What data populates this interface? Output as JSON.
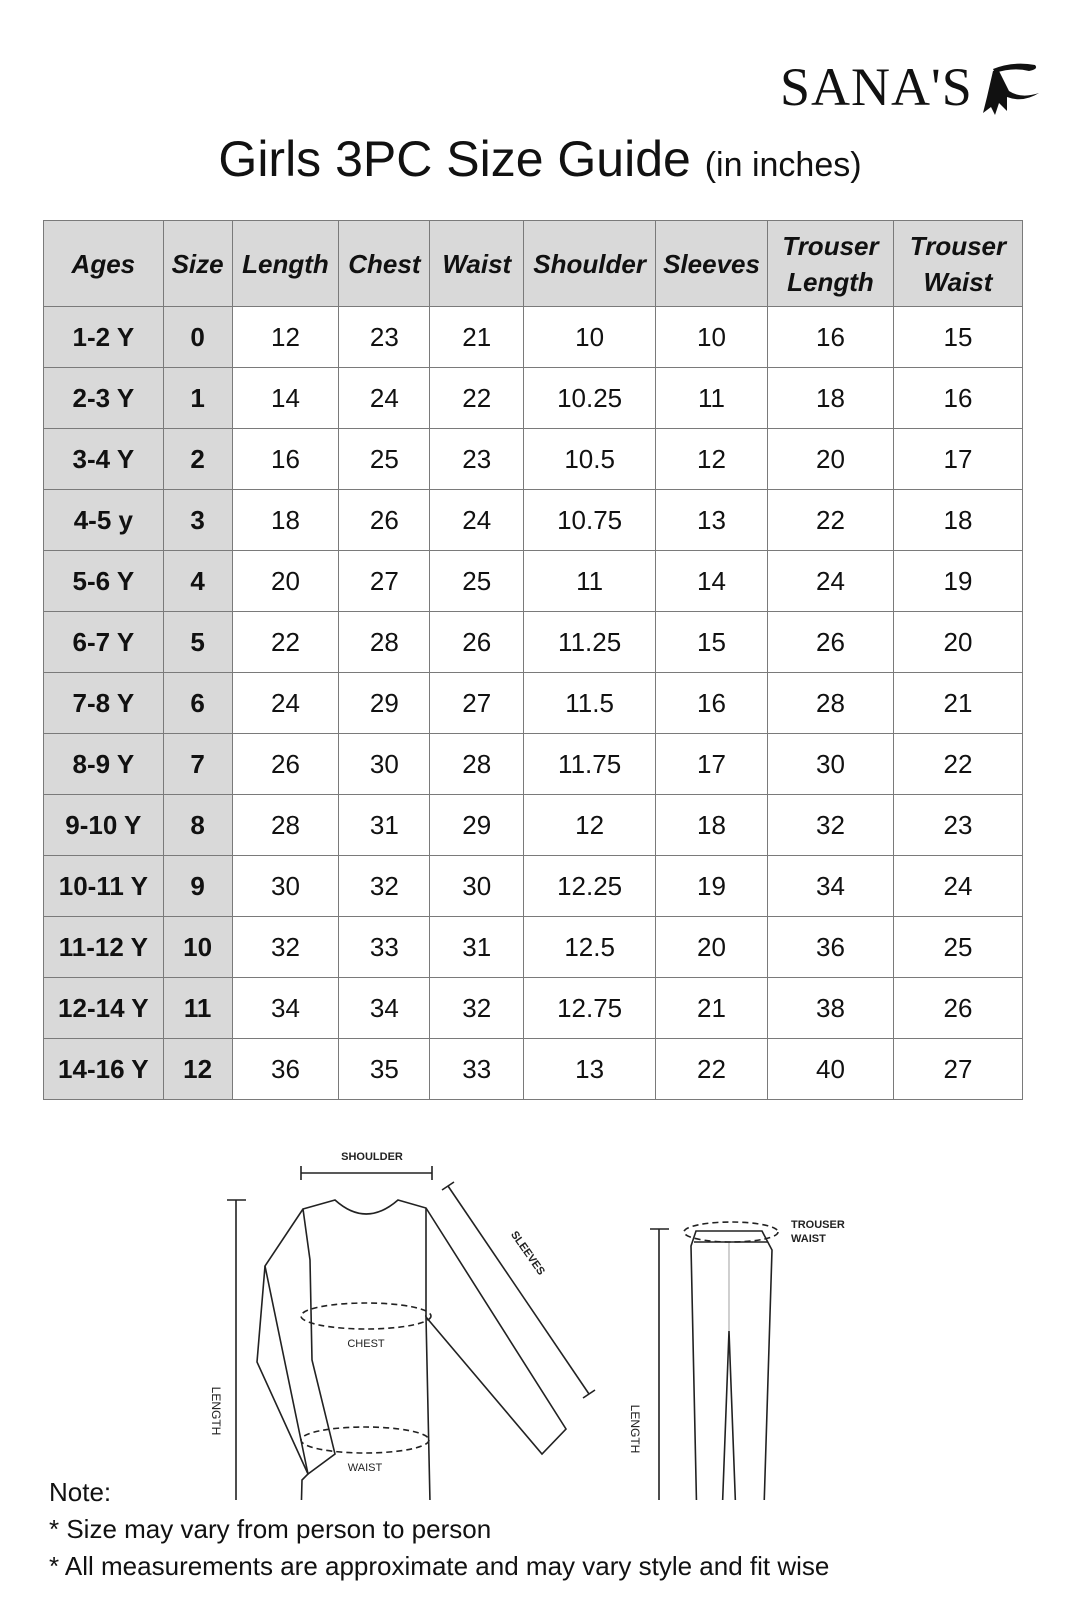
{
  "logo": {
    "text": "SANA'S",
    "icon": "dancer-logo-icon"
  },
  "title": {
    "main": "Girls 3PC Size Guide",
    "unit": "(in inches)"
  },
  "table": {
    "headers": [
      "Ages",
      "Size",
      "Length",
      "Chest",
      "Waist",
      "Shoulder",
      "Sleeves",
      "Trouser Length",
      "Trouser Waist"
    ],
    "rows": [
      [
        "1-2 Y",
        "0",
        "12",
        "23",
        "21",
        "10",
        "10",
        "16",
        "15"
      ],
      [
        "2-3 Y",
        "1",
        "14",
        "24",
        "22",
        "10.25",
        "11",
        "18",
        "16"
      ],
      [
        "3-4 Y",
        "2",
        "16",
        "25",
        "23",
        "10.5",
        "12",
        "20",
        "17"
      ],
      [
        "4-5 y",
        "3",
        "18",
        "26",
        "24",
        "10.75",
        "13",
        "22",
        "18"
      ],
      [
        "5-6 Y",
        "4",
        "20",
        "27",
        "25",
        "11",
        "14",
        "24",
        "19"
      ],
      [
        "6-7 Y",
        "5",
        "22",
        "28",
        "26",
        "11.25",
        "15",
        "26",
        "20"
      ],
      [
        "7-8 Y",
        "6",
        "24",
        "29",
        "27",
        "11.5",
        "16",
        "28",
        "21"
      ],
      [
        "8-9 Y",
        "7",
        "26",
        "30",
        "28",
        "11.75",
        "17",
        "30",
        "22"
      ],
      [
        "9-10 Y",
        "8",
        "28",
        "31",
        "29",
        "12",
        "18",
        "32",
        "23"
      ],
      [
        "10-11 Y",
        "9",
        "30",
        "32",
        "30",
        "12.25",
        "19",
        "34",
        "24"
      ],
      [
        "11-12 Y",
        "10",
        "32",
        "33",
        "31",
        "12.5",
        "20",
        "36",
        "25"
      ],
      [
        "12-14 Y",
        "11",
        "34",
        "34",
        "32",
        "12.75",
        "21",
        "38",
        "26"
      ],
      [
        "14-16 Y",
        "12",
        "36",
        "35",
        "33",
        "13",
        "22",
        "40",
        "27"
      ]
    ]
  },
  "diagram": {
    "shoulder": "SHOULDER",
    "sleeves": "SLEEVES",
    "chest": "CHEST",
    "waist": "WAIST",
    "length": "LENGTH",
    "trouser_length": "LENGTH",
    "trouser_waist_1": "TROUSER",
    "trouser_waist_2": "WAIST"
  },
  "notes": {
    "heading": "Note:",
    "items": [
      "* Size may vary from person to person",
      "* All measurements are approximate and may vary style and fit wise"
    ]
  }
}
